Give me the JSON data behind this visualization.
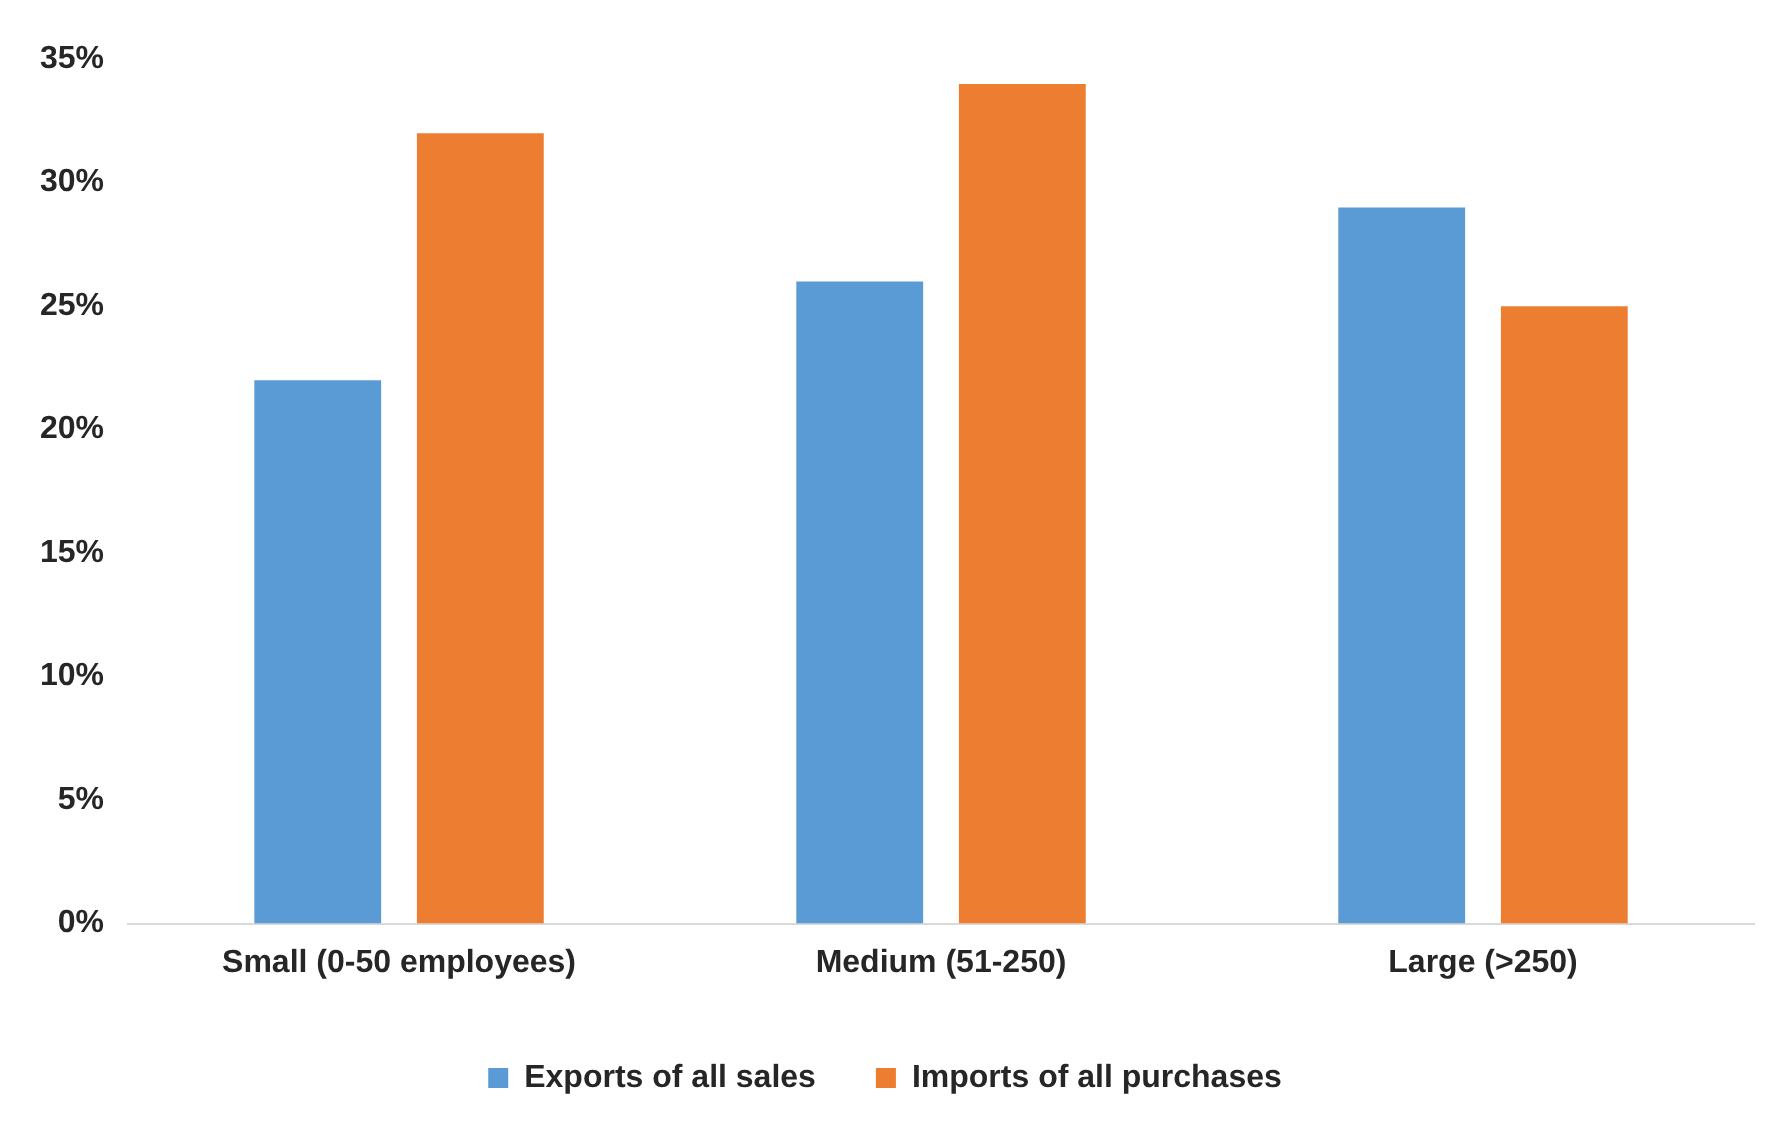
{
  "chart_data": {
    "type": "bar",
    "categories": [
      "Small (0-50 employees)",
      "Medium (51-250)",
      "Large (>250)"
    ],
    "series": [
      {
        "name": "Exports of all sales",
        "color": "#5b9bd5",
        "values": [
          22,
          26,
          29
        ]
      },
      {
        "name": "Imports of all purchases",
        "color": "#ed7d31",
        "values": [
          32,
          34,
          25
        ]
      }
    ],
    "ylim": [
      0,
      35
    ],
    "yticks": [
      {
        "value": 0,
        "label": "0%"
      },
      {
        "value": 5,
        "label": "5%"
      },
      {
        "value": 10,
        "label": "10%"
      },
      {
        "value": 15,
        "label": "15%"
      },
      {
        "value": 20,
        "label": "20%"
      },
      {
        "value": 25,
        "label": "25%"
      },
      {
        "value": 30,
        "label": "30%"
      },
      {
        "value": 35,
        "label": "35%"
      }
    ],
    "grid": false,
    "legend": "bottom"
  }
}
